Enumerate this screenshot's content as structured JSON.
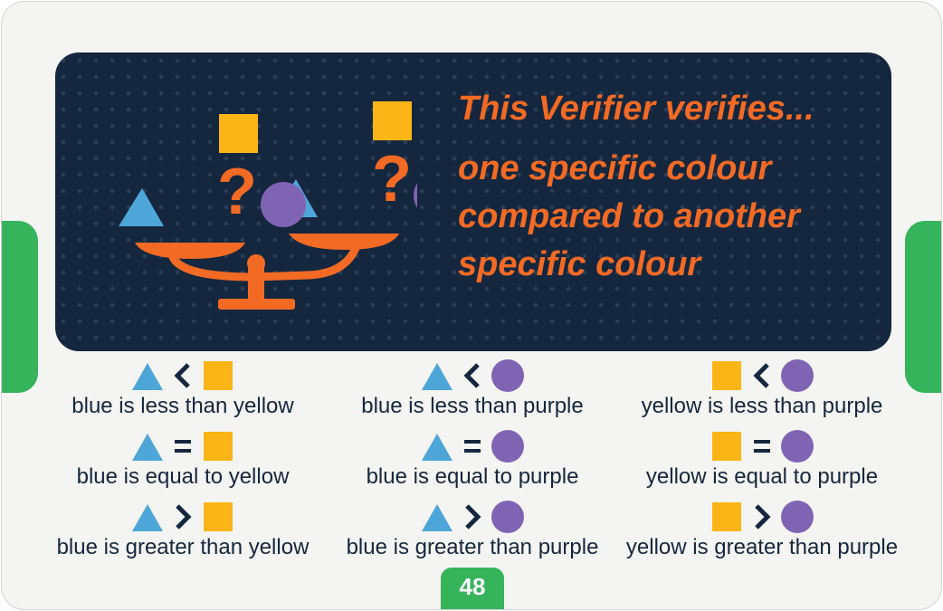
{
  "colors": {
    "banner_bg": "#15273e",
    "accent_orange": "#f26a24",
    "blue_shape": "#4ea6d8",
    "yellow_shape": "#fbb516",
    "purple_shape": "#8064b4",
    "green_tab": "#35b45c",
    "text_dark": "#15273e"
  },
  "banner": {
    "heading": "This Verifier verifies...",
    "description_lines": [
      "one specific colour",
      "compared to another",
      "specific colour"
    ],
    "illustration": {
      "left_pan": [
        "blue-triangle-icon",
        "question-mark-icon",
        "purple-circle-icon"
      ],
      "right_pan": [
        "blue-triangle-icon",
        "question-mark-icon",
        "purple-circle-icon"
      ],
      "above": [
        "yellow-square-icon",
        "yellow-square-icon"
      ]
    }
  },
  "comparisons": [
    {
      "items": [
        {
          "left": "triangle",
          "op": "less-than",
          "right": "square",
          "label": "blue is less than yellow"
        },
        {
          "left": "triangle",
          "op": "equals",
          "right": "square",
          "label": "blue is equal to yellow"
        },
        {
          "left": "triangle",
          "op": "greater-than",
          "right": "square",
          "label": "blue is greater than yellow"
        }
      ]
    },
    {
      "items": [
        {
          "left": "triangle",
          "op": "less-than",
          "right": "circle",
          "label": "blue is less than purple"
        },
        {
          "left": "triangle",
          "op": "equals",
          "right": "circle",
          "label": "blue is equal to purple"
        },
        {
          "left": "triangle",
          "op": "greater-than",
          "right": "circle",
          "label": "blue is greater than purple"
        }
      ]
    },
    {
      "items": [
        {
          "left": "square",
          "op": "less-than",
          "right": "circle",
          "label": "yellow is less than purple"
        },
        {
          "left": "square",
          "op": "equals",
          "right": "circle",
          "label": "yellow is equal to purple"
        },
        {
          "left": "square",
          "op": "greater-than",
          "right": "circle",
          "label": "yellow is greater than purple"
        }
      ]
    }
  ],
  "page_number": "48"
}
